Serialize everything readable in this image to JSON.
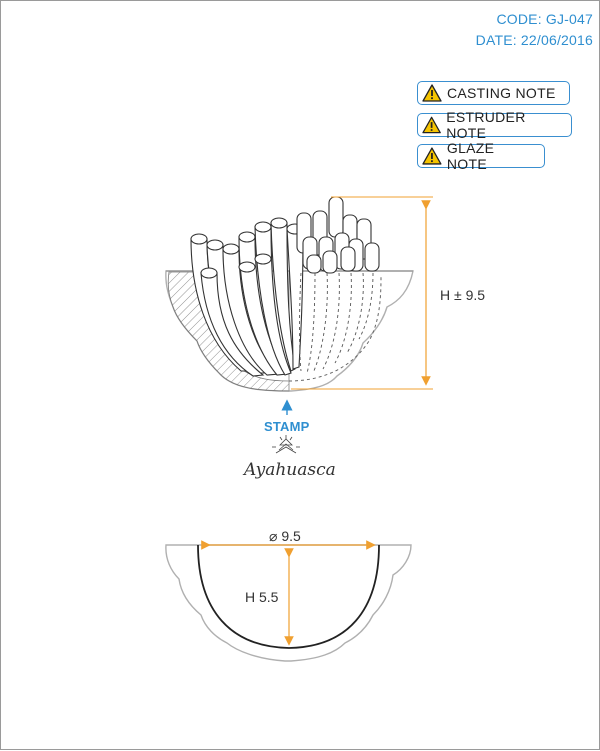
{
  "header": {
    "code": "CODE: GJ-047",
    "date": "DATE: 22/06/2016"
  },
  "notes": [
    {
      "label": "CASTING NOTE",
      "icon": "warning-icon"
    },
    {
      "label": "ESTRUDER NOTE",
      "icon": "warning-icon"
    },
    {
      "label": "GLAZE NOTE",
      "icon": "warning-icon"
    }
  ],
  "top_view": {
    "height_label": "H ± 9.5"
  },
  "stamp": {
    "label": "STAMP",
    "logo_text": "Ayahuasca"
  },
  "section_view": {
    "diameter_label": "⌀ 9.5",
    "height_label": "H 5.5"
  },
  "colors": {
    "accent": "#2f8fd0",
    "dimension": "#f0a030",
    "outline": "#444444",
    "faint": "#b0b0b0"
  }
}
